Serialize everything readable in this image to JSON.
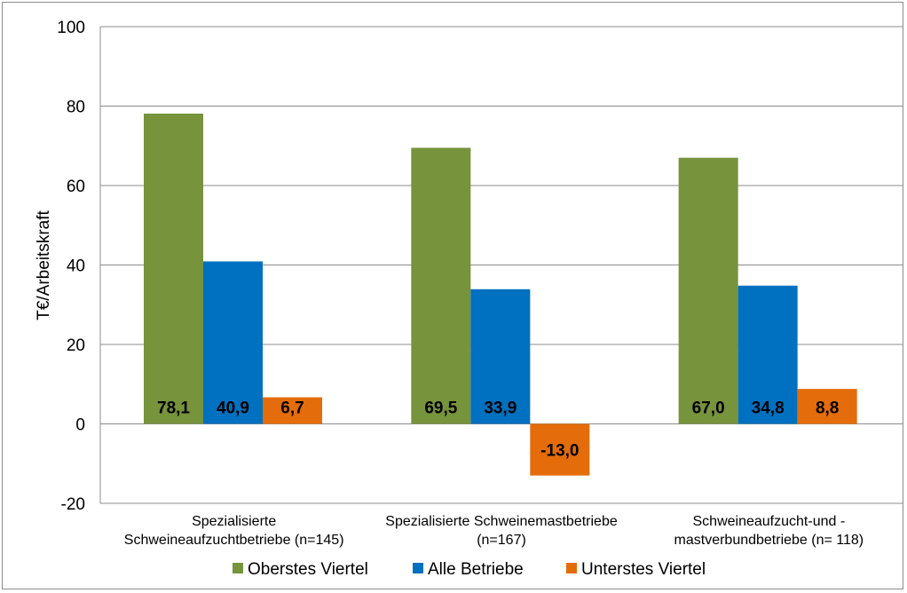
{
  "chart_data": {
    "type": "bar",
    "categories": [
      [
        "Spezialisierte",
        "Schweineaufzuchtbetriebe (n=145)"
      ],
      [
        "Spezialisierte Schweinemastbetriebe",
        "(n=167)"
      ],
      [
        "Schweineaufzucht-und -",
        "mastverbundbetriebe (n= 118)"
      ]
    ],
    "series": [
      {
        "name": "Oberstes Viertel",
        "color": "#77933c",
        "values": [
          78.1,
          69.5,
          67.0
        ],
        "labels": [
          "78,1",
          "69,5",
          "67,0"
        ]
      },
      {
        "name": "Alle Betriebe",
        "color": "#0070c0",
        "values": [
          40.9,
          33.9,
          34.8
        ],
        "labels": [
          "40,9",
          "33,9",
          "34,8"
        ]
      },
      {
        "name": "Unterstes Viertel",
        "color": "#e46c0a",
        "values": [
          6.7,
          -13.0,
          8.8
        ],
        "labels": [
          "6,7",
          "-13,0",
          "8,8"
        ]
      }
    ],
    "ylabel": "T€/Arbeitskraft",
    "ylim": [
      -20,
      100
    ],
    "yticks": [
      "-20",
      "0",
      "20",
      "40",
      "60",
      "80",
      "100"
    ],
    "grid": true,
    "legend_position": "bottom"
  }
}
